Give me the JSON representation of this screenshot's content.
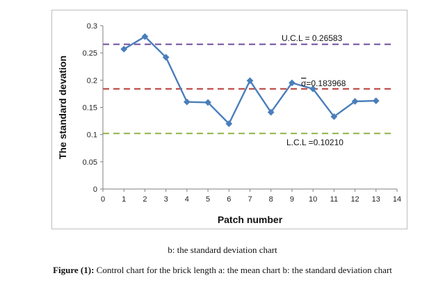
{
  "chart_data": {
    "type": "line",
    "title": "",
    "xlabel": "Patch number",
    "ylabel": "The standard devation",
    "xlim": [
      0,
      14
    ],
    "ylim": [
      0,
      0.3
    ],
    "x_ticks": [
      "0",
      "1",
      "2",
      "3",
      "4",
      "5",
      "6",
      "7",
      "8",
      "9",
      "10",
      "11",
      "12",
      "13",
      "14"
    ],
    "y_ticks": [
      "0",
      "0.05",
      "0.1",
      "0.15",
      "0.2",
      "0.25",
      "0.3"
    ],
    "grid": false,
    "series": [
      {
        "name": "Standard deviation",
        "color": "#4a7ebb",
        "x": [
          1,
          2,
          3,
          4,
          5,
          6,
          7,
          8,
          9,
          10,
          11,
          12,
          13
        ],
        "values": [
          0.257,
          0.28,
          0.242,
          0.16,
          0.159,
          0.12,
          0.199,
          0.141,
          0.195,
          0.184,
          0.133,
          0.161,
          0.162
        ]
      }
    ],
    "reference_lines": [
      {
        "name": "UCL",
        "value": 0.26583,
        "label": "U.C.L = 0.26583",
        "color": "#7f5fa8"
      },
      {
        "name": "center",
        "value": 0.183968,
        "label_symbol": "σ",
        "label": "=0.183968",
        "color": "#c0504d"
      },
      {
        "name": "LCL",
        "value": 0.1021,
        "label": "L.C.L =0.10210",
        "color": "#9bbb59"
      }
    ]
  },
  "captions": {
    "sub": "b: the standard deviation chart",
    "figure_label": "Figure (1):",
    "figure_text": " Control chart for the brick length a: the mean chart b: the standard deviation chart"
  }
}
